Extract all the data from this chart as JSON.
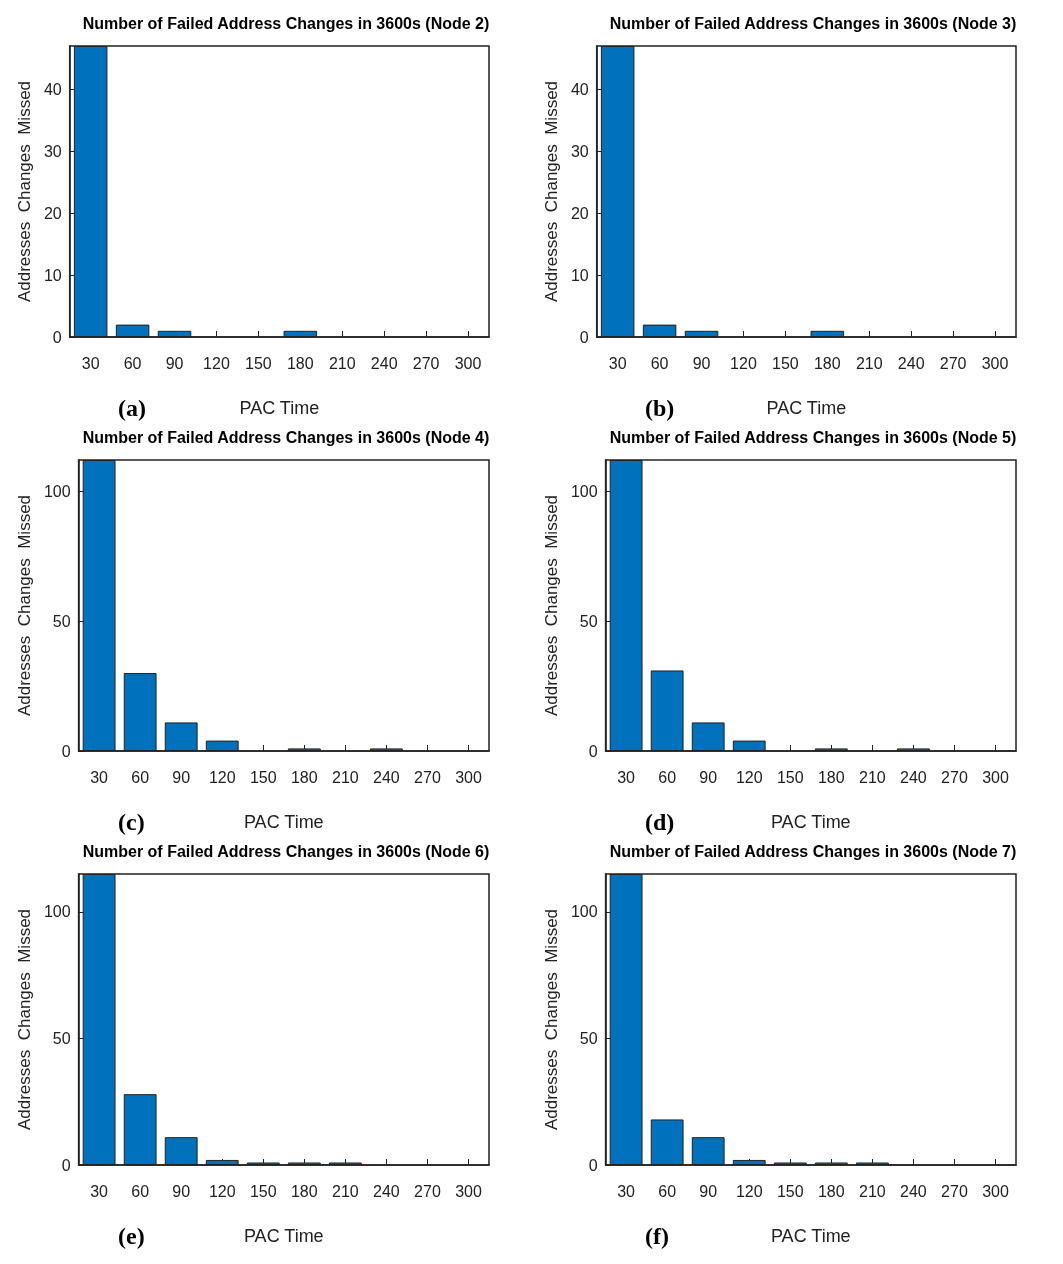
{
  "chart_data": [
    {
      "type": "bar",
      "title": "Number of Failed Address Changes in 3600s (Node 2)",
      "xlabel": "PAC Time",
      "ylabel": "Addresses  Changes  Missed",
      "annotations": [
        "(a)"
      ],
      "categories": [
        "30",
        "60",
        "90",
        "120",
        "150",
        "180",
        "210",
        "240",
        "270",
        "300"
      ],
      "values": [
        47,
        2,
        1,
        0,
        0,
        1,
        0,
        0,
        0,
        0
      ],
      "color": "#0072bd",
      "ylim": [
        0,
        47
      ],
      "yticks": [
        0,
        10,
        20,
        30,
        40
      ],
      "grid": false
    },
    {
      "type": "bar",
      "title": "Number of Failed Address Changes in 3600s (Node 3)",
      "xlabel": "PAC Time",
      "ylabel": "Addresses  Changes  Missed",
      "annotations": [
        "(b)"
      ],
      "categories": [
        "30",
        "60",
        "90",
        "120",
        "150",
        "180",
        "210",
        "240",
        "270",
        "300"
      ],
      "values": [
        47,
        2,
        1,
        0,
        0,
        1,
        0,
        0,
        0,
        0
      ],
      "color": "#0072bd",
      "ylim": [
        0,
        47
      ],
      "yticks": [
        0,
        10,
        20,
        30,
        40
      ],
      "grid": false
    },
    {
      "type": "bar",
      "title": "Number of Failed Address Changes in 3600s (Node 4)",
      "xlabel": "PAC Time",
      "ylabel": "Addresses  Changes  Missed",
      "annotations": [
        "(c)"
      ],
      "categories": [
        "30",
        "60",
        "90",
        "120",
        "150",
        "180",
        "210",
        "240",
        "270",
        "300"
      ],
      "values": [
        112,
        30,
        11,
        4,
        0,
        1,
        0,
        1,
        0,
        0
      ],
      "color": "#0072bd",
      "ylim": [
        0,
        112
      ],
      "yticks": [
        0,
        50,
        100
      ],
      "grid": false
    },
    {
      "type": "bar",
      "title": "Number of Failed Address Changes in 3600s (Node 5)",
      "xlabel": "PAC Time",
      "ylabel": "Addresses  Changes  Missed",
      "annotations": [
        "(d)"
      ],
      "categories": [
        "30",
        "60",
        "90",
        "120",
        "150",
        "180",
        "210",
        "240",
        "270",
        "300"
      ],
      "values": [
        112,
        31,
        11,
        4,
        0,
        1,
        0,
        1,
        0,
        0
      ],
      "color": "#0072bd",
      "ylim": [
        0,
        112
      ],
      "yticks": [
        0,
        50,
        100
      ],
      "grid": false
    },
    {
      "type": "bar",
      "title": "Number of Failed Address Changes in 3600s (Node 6)",
      "xlabel": "PAC Time",
      "ylabel": "Addresses  Changes  Missed",
      "annotations": [
        "(e)"
      ],
      "categories": [
        "30",
        "60",
        "90",
        "120",
        "150",
        "180",
        "210",
        "240",
        "270",
        "300"
      ],
      "values": [
        115,
        28,
        11,
        2,
        1,
        1,
        1,
        0,
        0,
        0
      ],
      "color": "#0072bd",
      "ylim": [
        0,
        115
      ],
      "yticks": [
        0,
        50,
        100
      ],
      "grid": false
    },
    {
      "type": "bar",
      "title": "Number of Failed Address Changes in 3600s (Node 7)",
      "xlabel": "PAC Time",
      "ylabel": "Addresses  Changes  Missed",
      "annotations": [
        "(f)"
      ],
      "categories": [
        "30",
        "60",
        "90",
        "120",
        "150",
        "180",
        "210",
        "240",
        "270",
        "300"
      ],
      "values": [
        115,
        18,
        11,
        2,
        1,
        1,
        1,
        0,
        0,
        0
      ],
      "color": "#0072bd",
      "ylim": [
        0,
        115
      ],
      "yticks": [
        0,
        50,
        100
      ],
      "grid": false
    }
  ]
}
